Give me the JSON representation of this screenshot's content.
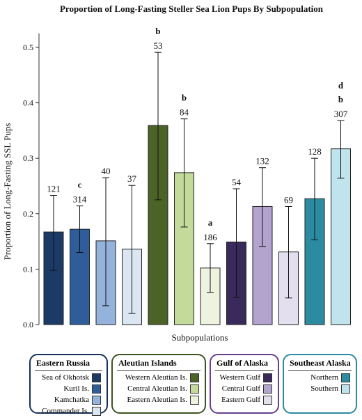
{
  "chart_data": {
    "type": "bar",
    "title": "Proportion  of Long-Fasting Steller Sea Lion Pups By Subpopulation",
    "xlabel": "Subpopulations",
    "ylabel": "Proportion of Long-Fasting  SSL Pups",
    "ylim": [
      0,
      0.53
    ],
    "yticks": [
      0.0,
      0.1,
      0.2,
      0.3,
      0.4,
      0.5
    ],
    "ytick_labels": [
      "0.0",
      "0.1",
      "0.2",
      "0.3",
      "0.4",
      "0.5"
    ],
    "grid": false,
    "bars": [
      {
        "name": "Sea of Okhotsk",
        "value": 0.167,
        "err_low": 0.098,
        "err_high": 0.233,
        "n": "121",
        "letters": [],
        "color": "#1c3a66"
      },
      {
        "name": "Kuril Is.",
        "value": 0.172,
        "err_low": 0.13,
        "err_high": 0.214,
        "n": "314",
        "letters": [
          "c"
        ],
        "color": "#2e5d9a"
      },
      {
        "name": "Kamchatka",
        "value": 0.151,
        "err_low": 0.034,
        "err_high": 0.265,
        "n": "40",
        "letters": [],
        "color": "#93b2dc"
      },
      {
        "name": "Commander Is.",
        "value": 0.136,
        "err_low": 0.02,
        "err_high": 0.251,
        "n": "37",
        "letters": [],
        "color": "#dce6f3"
      },
      {
        "name": "Western Aleutian Is.",
        "value": 0.359,
        "err_low": 0.225,
        "err_high": 0.491,
        "n": "53",
        "letters": [
          "b"
        ],
        "color": "#4c6327"
      },
      {
        "name": "Central Aleutian Is.",
        "value": 0.274,
        "err_low": 0.176,
        "err_high": 0.371,
        "n": "84",
        "letters": [
          "b"
        ],
        "color": "#c3da9a"
      },
      {
        "name": "Eastern Aleutian Is.",
        "value": 0.102,
        "err_low": 0.058,
        "err_high": 0.146,
        "n": "186",
        "letters": [
          "a"
        ],
        "color": "#edf3df"
      },
      {
        "name": "Western Gulf",
        "value": 0.149,
        "err_low": 0.049,
        "err_high": 0.245,
        "n": "54",
        "letters": [],
        "color": "#3a2a5c"
      },
      {
        "name": "Central Gulf",
        "value": 0.213,
        "err_low": 0.141,
        "err_high": 0.283,
        "n": "132",
        "letters": [],
        "color": "#b3a3cf"
      },
      {
        "name": "Eastern Gulf",
        "value": 0.131,
        "err_low": 0.048,
        "err_high": 0.213,
        "n": "69",
        "letters": [],
        "color": "#e4dfef"
      },
      {
        "name": "Northern",
        "value": 0.227,
        "err_low": 0.153,
        "err_high": 0.3,
        "n": "128",
        "letters": [],
        "color": "#2b8ba1"
      },
      {
        "name": "Southern",
        "value": 0.317,
        "err_low": 0.264,
        "err_high": 0.368,
        "n": "307",
        "letters": [
          "b",
          "d"
        ],
        "color": "#bfe4ee"
      }
    ],
    "legend_groups": [
      {
        "title": "Eastern Russia",
        "border": "#16305a",
        "items": [
          {
            "label": "Sea of Okhotsk",
            "color": "#1c3a66"
          },
          {
            "label": "Kuril Is.",
            "color": "#2e5d9a"
          },
          {
            "label": "Kamchatka",
            "color": "#93b2dc"
          },
          {
            "label": "Commander Is.",
            "color": "#dce6f3"
          }
        ]
      },
      {
        "title": "Aleutian Islands",
        "border": "#3e5420",
        "items": [
          {
            "label": "Western Aleutian Is.",
            "color": "#4c6327"
          },
          {
            "label": "Central Aleutian Is.",
            "color": "#c3da9a"
          },
          {
            "label": "Eastern Aleutian Is.",
            "color": "#edf3df"
          }
        ]
      },
      {
        "title": "Gulf of Alaska",
        "border": "#6a3f8f",
        "items": [
          {
            "label": "Western Gulf",
            "color": "#3a2a5c"
          },
          {
            "label": "Central Gulf",
            "color": "#b3a3cf"
          },
          {
            "label": "Eastern Gulf",
            "color": "#e4dfef"
          }
        ]
      },
      {
        "title": "Southeast Alaska",
        "border": "#2b8ba1",
        "items": [
          {
            "label": "Northern",
            "color": "#2b8ba1"
          },
          {
            "label": "Southern",
            "color": "#bfe4ee"
          }
        ]
      }
    ]
  }
}
